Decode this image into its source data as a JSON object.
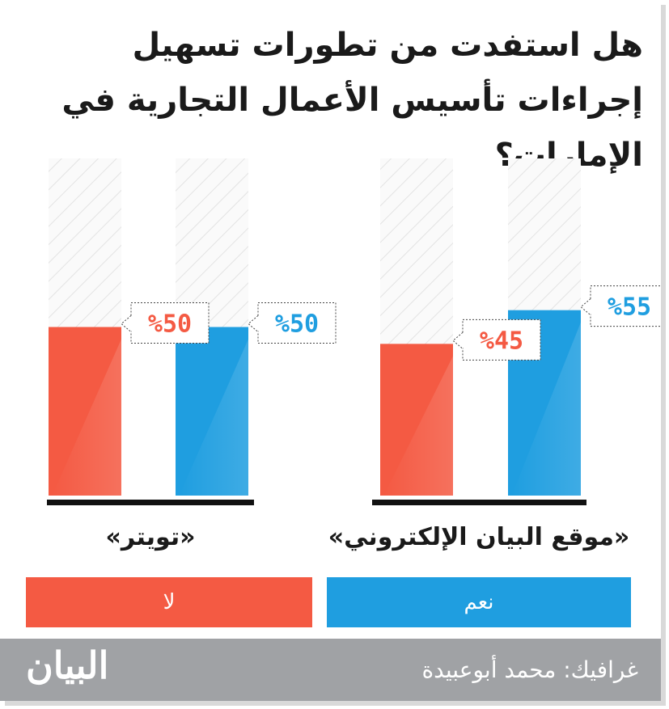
{
  "header": {
    "title": "هل استفدت من تطورات تسهيل إجراءات تأسيس الأعمال التجارية في الإمارات؟"
  },
  "chart_data": {
    "type": "bar",
    "categories": [
      "«موقع البيان الإلكتروني»",
      "«تويتر»"
    ],
    "series": [
      {
        "name": "نعم",
        "values": [
          55,
          50
        ],
        "labels": [
          "%55",
          "%50"
        ],
        "color": "#1f9ee0"
      },
      {
        "name": "لا",
        "values": [
          45,
          50
        ],
        "labels": [
          "%45",
          "%50"
        ],
        "color": "#f45a43"
      }
    ],
    "ylim": [
      0,
      100
    ],
    "title": "هل استفدت من تطورات تسهيل إجراءات تأسيس الأعمال التجارية في الإمارات؟",
    "legend_position": "bottom"
  },
  "legend": {
    "yes_label": "نعم",
    "no_label": "لا"
  },
  "footer": {
    "credit": "غرافيك: محمد أبوعبيدة",
    "brand": "البيان"
  }
}
